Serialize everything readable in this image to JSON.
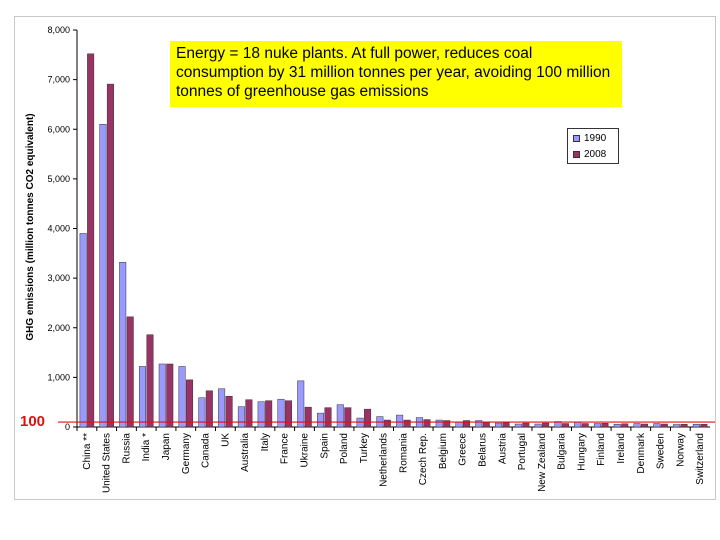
{
  "chart_data": {
    "type": "bar",
    "ylabel": "GHG emissions (million tonnes CO2 equivalent)",
    "ylim": [
      0,
      8000
    ],
    "yticks": [
      "0",
      "1,000",
      "2,000",
      "3,000",
      "4,000",
      "5,000",
      "6,000",
      "7,000",
      "8,000"
    ],
    "grid": false,
    "legend_position": "top-right",
    "categories": [
      "China **",
      "United States",
      "Russia",
      "India *",
      "Japan",
      "Germany",
      "Canada",
      "UK",
      "Australia",
      "Italy",
      "France",
      "Ukraine",
      "Spain",
      "Poland",
      "Turkey",
      "Netherlands",
      "Romania",
      "Czech Rep.",
      "Belgium",
      "Greece",
      "Belarus",
      "Austria",
      "Portugal",
      "New Zealand",
      "Bulgaria",
      "Hungary",
      "Finland",
      "Ireland",
      "Denmark",
      "Sweden",
      "Norway",
      "Switzerland"
    ],
    "series": [
      {
        "name": "1990",
        "color": "#9999ff",
        "values": [
          3900,
          6100,
          3320,
          1220,
          1270,
          1220,
          590,
          770,
          410,
          510,
          560,
          930,
          280,
          450,
          180,
          210,
          240,
          190,
          140,
          100,
          130,
          80,
          60,
          60,
          110,
          100,
          70,
          55,
          70,
          70,
          50,
          55
        ]
      },
      {
        "name": "2008",
        "color": "#993366",
        "values": [
          7520,
          6910,
          2220,
          1860,
          1270,
          950,
          730,
          620,
          550,
          530,
          530,
          400,
          390,
          390,
          360,
          140,
          140,
          150,
          130,
          130,
          90,
          85,
          80,
          80,
          70,
          70,
          75,
          65,
          60,
          60,
          55,
          55
        ]
      }
    ],
    "annotation": "Energy = 18 nuke plants. At full power, reduces coal consumption by 31 million tonnes per year, avoiding 100 million tonnes of greenhouse gas emissions",
    "reference_line": {
      "value": 100,
      "label": "100",
      "color": "#e01010"
    }
  }
}
